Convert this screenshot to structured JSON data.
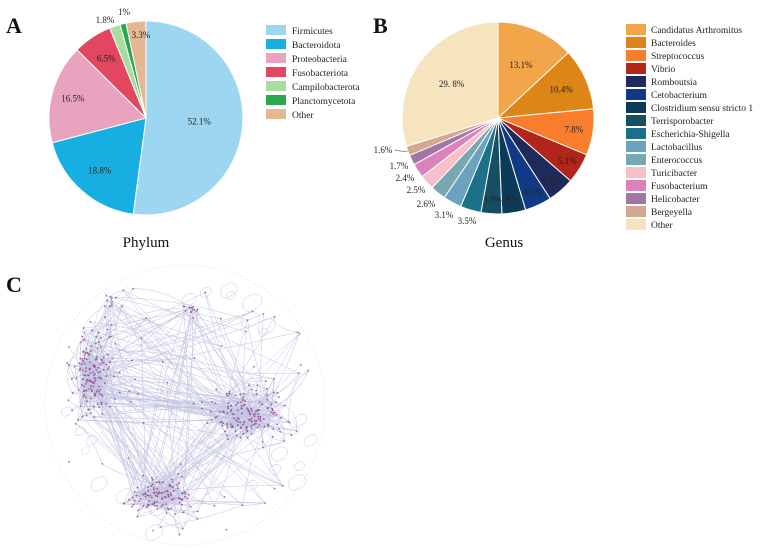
{
  "figure": {
    "panels": [
      {
        "letter": "A"
      },
      {
        "letter": "B"
      },
      {
        "letter": "C"
      }
    ]
  },
  "chart_data": [
    {
      "type": "pie",
      "panel": "A",
      "title": "Phylum",
      "categories": [
        "Firmicutes",
        "Bacteroidota",
        "Proteobacteria",
        "Fusobacteriota",
        "Campilobacterota",
        "Planctomycetota",
        "Other"
      ],
      "values": [
        52.1,
        18.8,
        16.5,
        6.5,
        1.8,
        1.0,
        3.3
      ],
      "labels": [
        "52.1%",
        "18.8%",
        "16.5%",
        "6.5%",
        "1.8%",
        "1%",
        "3.3%"
      ],
      "colors": [
        "#9dd6f0",
        "#17aee2",
        "#e8a3bf",
        "#e2475f",
        "#a9dd9d",
        "#29a852",
        "#e4b892"
      ],
      "legend": "right"
    },
    {
      "type": "pie",
      "panel": "B",
      "title": "Genus",
      "categories": [
        "Candidatus Arthromitus",
        "Bacteroides",
        "Streptococcus",
        "Vibrio",
        "Romboutsia",
        "Cetobacterium",
        "Clostridium sensu stricto 1",
        "Terrisporobacter",
        "Escherichia-Shigella",
        "Lactobacillus",
        "Enterococcus",
        "Turicibacter",
        "Fusobacterium",
        "Helicobacter",
        "Bergeyella",
        "Other"
      ],
      "values": [
        13.1,
        10.4,
        7.8,
        5.1,
        4.5,
        4.5,
        4.0,
        3.5,
        3.5,
        3.1,
        2.6,
        2.5,
        2.4,
        1.7,
        1.6,
        29.8
      ],
      "labels": [
        "13.1%",
        "10.4%",
        "7.8%",
        "5.1%",
        "4.5%",
        "4.5%",
        "4%",
        "3.5%",
        "3.5%",
        "3.1%",
        "2.6%",
        "2.5%",
        "2.4%",
        "1.7%",
        "1.6%",
        "29. 8%"
      ],
      "colors": [
        "#f3a54a",
        "#dd8516",
        "#f87d2d",
        "#b1251a",
        "#1f2a5c",
        "#113a86",
        "#0d3a58",
        "#164f63",
        "#1c7089",
        "#6ba2bd",
        "#77a8b2",
        "#f7bfc8",
        "#da82b9",
        "#9f76a6",
        "#d4a88f",
        "#f6e4bf"
      ],
      "legend": "right"
    },
    {
      "type": "network",
      "panel": "C",
      "title": "",
      "description_nodes": "co-occurrence network",
      "colors": {
        "edge": "#8f92c8",
        "node": "#8b2a7a"
      }
    }
  ]
}
